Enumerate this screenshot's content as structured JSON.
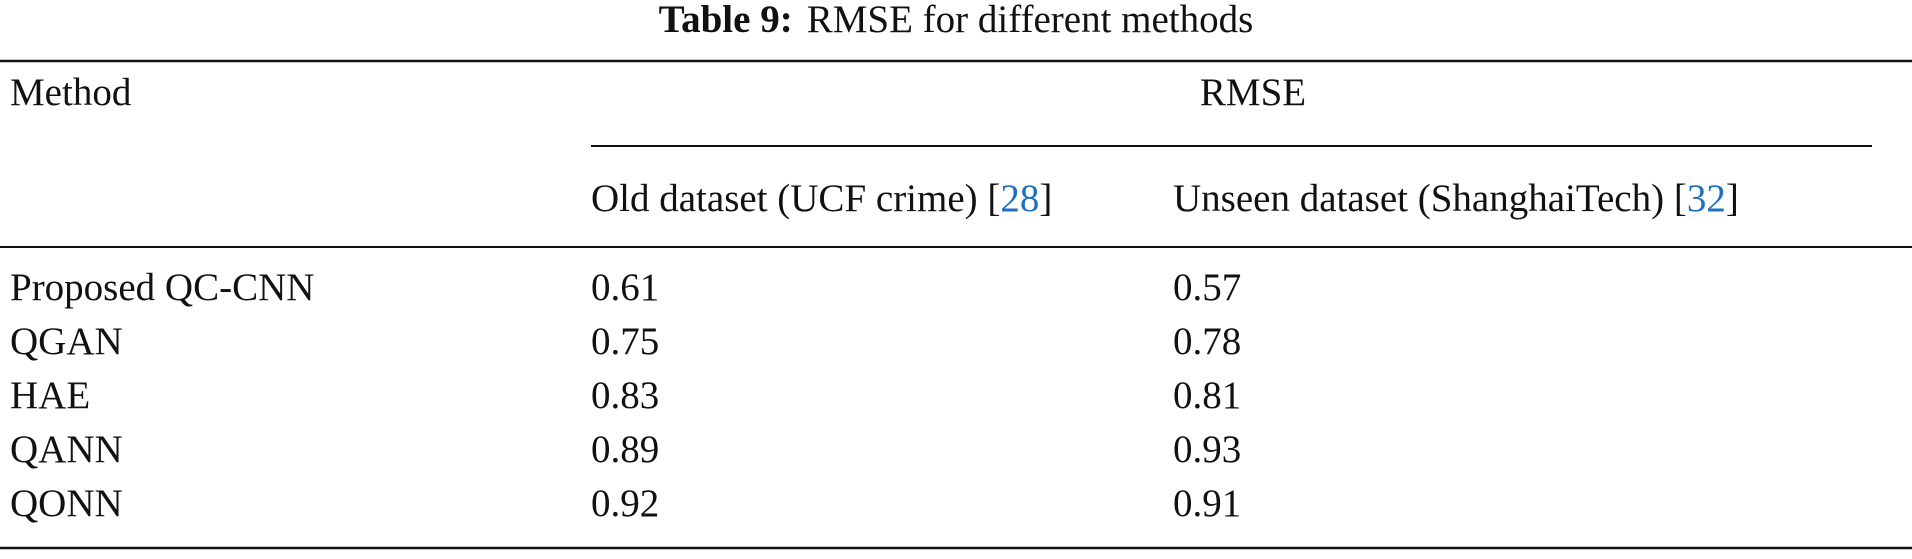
{
  "table": {
    "caption": {
      "label": "Table 9:",
      "text": "RMSE for different methods"
    },
    "header": {
      "method": "Method",
      "group": "RMSE",
      "columns": [
        {
          "text": "Old dataset (UCF crime) [",
          "ref": "28",
          "close": "]"
        },
        {
          "text": "Unseen dataset (ShanghaiTech) [",
          "ref": "32",
          "close": "]"
        }
      ]
    },
    "rows": [
      [
        "Proposed QC-CNN",
        "0.61",
        "0.57"
      ],
      [
        "QGAN",
        "0.75",
        "0.78"
      ],
      [
        "HAE",
        "0.83",
        "0.81"
      ],
      [
        "QANN",
        "0.89",
        "0.93"
      ],
      [
        "QONN",
        "0.92",
        "0.91"
      ]
    ]
  }
}
